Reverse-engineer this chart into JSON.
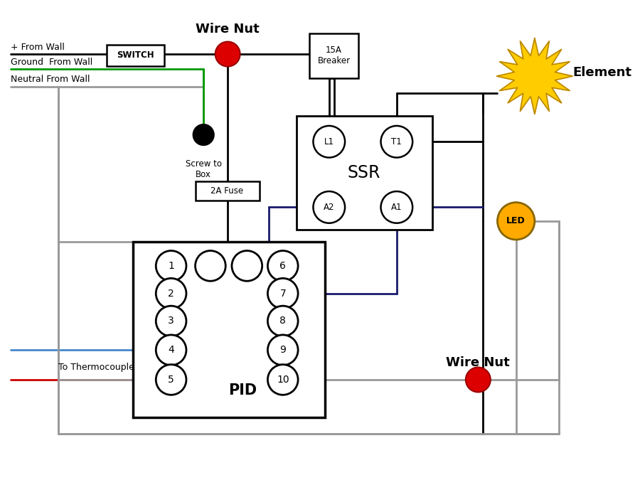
{
  "bg_color": "#ffffff",
  "labels": {
    "wire_nut_top": "Wire Nut",
    "wire_nut_bottom": "Wire Nut",
    "switch": "SWITCH",
    "breaker": "15A\nBreaker",
    "ssr": "SSR",
    "pid": "PID",
    "element": "Element",
    "led": "LED",
    "screw": "Screw to\nBox",
    "fuse": "2A Fuse",
    "from_wall_plus": "+ From Wall",
    "from_wall_ground": "Ground  From Wall",
    "from_wall_neutral": "Neutral From Wall",
    "thermocouple": "To Thermocouple",
    "l1": "L1",
    "t1": "T1",
    "a1": "A1",
    "a2": "A2"
  },
  "colors": {
    "black": "#000000",
    "red": "#cc0000",
    "green": "#009900",
    "blue": "#4488cc",
    "gray": "#999999",
    "wire_nut_red": "#dd0000",
    "element_yellow": "#ffcc00",
    "led_yellow": "#ffaa00",
    "dark_blue": "#1a1a6e",
    "wire_black": "#111111"
  }
}
